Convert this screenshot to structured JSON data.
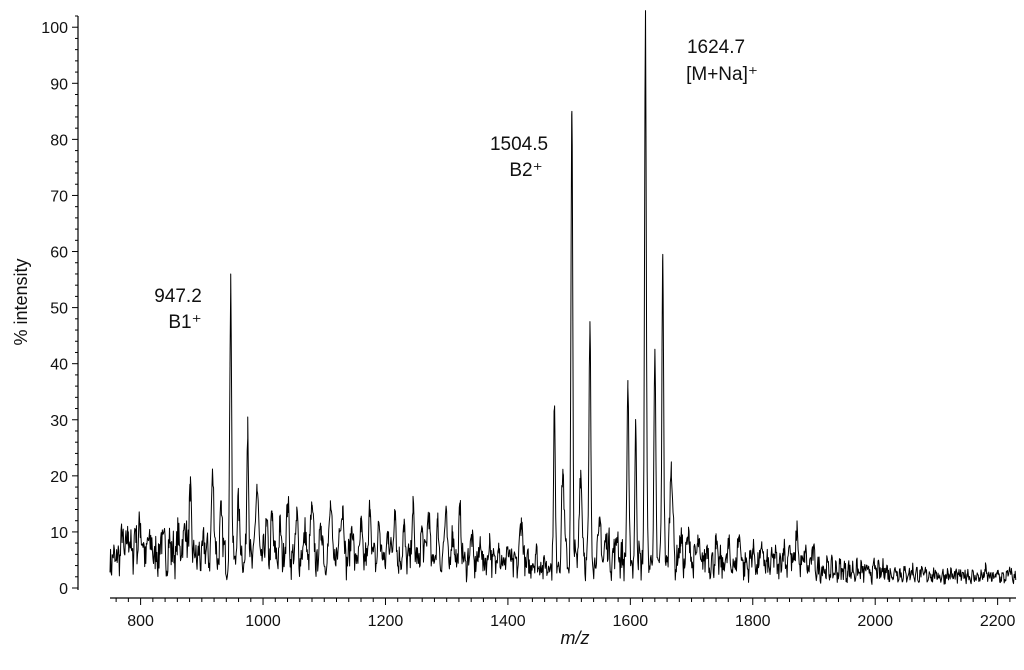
{
  "chart_data": {
    "type": "line",
    "title": "",
    "xlabel": "m/z",
    "ylabel": "% intensity",
    "xlim": [
      750,
      2230
    ],
    "ylim": [
      0,
      102
    ],
    "xticks": [
      800,
      1000,
      1200,
      1400,
      1600,
      1800,
      2000,
      2200
    ],
    "yticks": [
      0,
      10,
      20,
      30,
      40,
      50,
      60,
      70,
      80,
      90,
      100
    ],
    "grid": false,
    "legend": "none",
    "baseline": [
      [
        750,
        5
      ],
      [
        800,
        6
      ],
      [
        850,
        6
      ],
      [
        900,
        5.5
      ],
      [
        950,
        5
      ],
      [
        1000,
        5
      ],
      [
        1100,
        5
      ],
      [
        1200,
        4.8
      ],
      [
        1300,
        4.5
      ],
      [
        1400,
        4.2
      ],
      [
        1460,
        4
      ],
      [
        1520,
        5
      ],
      [
        1560,
        5.5
      ],
      [
        1600,
        5
      ],
      [
        1700,
        4.5
      ],
      [
        1800,
        4
      ],
      [
        1900,
        3.5
      ],
      [
        2000,
        2.8
      ],
      [
        2100,
        2.2
      ],
      [
        2230,
        1.8
      ]
    ],
    "peaks": [
      {
        "x": 770,
        "y": 9
      },
      {
        "x": 780,
        "y": 10
      },
      {
        "x": 792,
        "y": 10
      },
      {
        "x": 800,
        "y": 11.5
      },
      {
        "x": 815,
        "y": 9
      },
      {
        "x": 835,
        "y": 9
      },
      {
        "x": 848,
        "y": 8
      },
      {
        "x": 862,
        "y": 9
      },
      {
        "x": 872,
        "y": 11.5
      },
      {
        "x": 881,
        "y": 15.5
      },
      {
        "x": 905,
        "y": 8
      },
      {
        "x": 918,
        "y": 19.5
      },
      {
        "x": 932,
        "y": 13
      },
      {
        "x": 947.2,
        "y": 56
      },
      {
        "x": 960,
        "y": 15
      },
      {
        "x": 975,
        "y": 30.5
      },
      {
        "x": 990,
        "y": 18.5
      },
      {
        "x": 1005,
        "y": 11
      },
      {
        "x": 1015,
        "y": 12
      },
      {
        "x": 1028,
        "y": 10
      },
      {
        "x": 1040,
        "y": 15
      },
      {
        "x": 1055,
        "y": 12
      },
      {
        "x": 1068,
        "y": 10
      },
      {
        "x": 1080,
        "y": 14.5
      },
      {
        "x": 1095,
        "y": 11
      },
      {
        "x": 1110,
        "y": 14.5
      },
      {
        "x": 1125,
        "y": 10
      },
      {
        "x": 1130,
        "y": 14.5
      },
      {
        "x": 1145,
        "y": 11
      },
      {
        "x": 1160,
        "y": 10
      },
      {
        "x": 1175,
        "y": 14
      },
      {
        "x": 1190,
        "y": 11
      },
      {
        "x": 1205,
        "y": 10
      },
      {
        "x": 1215,
        "y": 14
      },
      {
        "x": 1230,
        "y": 10
      },
      {
        "x": 1245,
        "y": 13.5
      },
      {
        "x": 1260,
        "y": 10
      },
      {
        "x": 1270,
        "y": 13.5
      },
      {
        "x": 1285,
        "y": 11
      },
      {
        "x": 1298,
        "y": 13
      },
      {
        "x": 1310,
        "y": 10
      },
      {
        "x": 1322,
        "y": 13
      },
      {
        "x": 1340,
        "y": 9
      },
      {
        "x": 1355,
        "y": 8
      },
      {
        "x": 1370,
        "y": 8
      },
      {
        "x": 1385,
        "y": 8
      },
      {
        "x": 1400,
        "y": 7
      },
      {
        "x": 1422,
        "y": 12.5
      },
      {
        "x": 1445,
        "y": 6
      },
      {
        "x": 1476,
        "y": 32
      },
      {
        "x": 1490,
        "y": 20.5
      },
      {
        "x": 1504.5,
        "y": 85
      },
      {
        "x": 1519,
        "y": 21
      },
      {
        "x": 1534,
        "y": 47.5
      },
      {
        "x": 1550,
        "y": 11
      },
      {
        "x": 1562,
        "y": 9
      },
      {
        "x": 1578,
        "y": 9
      },
      {
        "x": 1596,
        "y": 37
      },
      {
        "x": 1609,
        "y": 28.5
      },
      {
        "x": 1624.7,
        "y": 102
      },
      {
        "x": 1640,
        "y": 41.5
      },
      {
        "x": 1653,
        "y": 59.5
      },
      {
        "x": 1667,
        "y": 22.5
      },
      {
        "x": 1682,
        "y": 9
      },
      {
        "x": 1695,
        "y": 10
      },
      {
        "x": 1710,
        "y": 8
      },
      {
        "x": 1725,
        "y": 7
      },
      {
        "x": 1740,
        "y": 7
      },
      {
        "x": 1760,
        "y": 7
      },
      {
        "x": 1778,
        "y": 9.5
      },
      {
        "x": 1800,
        "y": 7
      },
      {
        "x": 1815,
        "y": 7
      },
      {
        "x": 1835,
        "y": 6
      },
      {
        "x": 1850,
        "y": 7
      },
      {
        "x": 1860,
        "y": 7.5
      },
      {
        "x": 1872,
        "y": 10
      },
      {
        "x": 1885,
        "y": 6
      },
      {
        "x": 1898,
        "y": 6.5
      },
      {
        "x": 1915,
        "y": 3.5
      },
      {
        "x": 1935,
        "y": 3
      },
      {
        "x": 1955,
        "y": 3
      },
      {
        "x": 1980,
        "y": 3
      },
      {
        "x": 2000,
        "y": 3.5
      },
      {
        "x": 2015,
        "y": 3.5
      },
      {
        "x": 2035,
        "y": 3
      },
      {
        "x": 2060,
        "y": 3
      },
      {
        "x": 2090,
        "y": 2.5
      },
      {
        "x": 2120,
        "y": 2.5
      },
      {
        "x": 2150,
        "y": 2.5
      },
      {
        "x": 2180,
        "y": 3
      },
      {
        "x": 2200,
        "y": 2.5
      },
      {
        "x": 2220,
        "y": 3
      }
    ],
    "annotations": [
      {
        "id": "b1",
        "x": 947.2,
        "value_label": "947.2",
        "ion_label": "B1⁺"
      },
      {
        "id": "b2",
        "x": 1504.5,
        "value_label": "1504.5",
        "ion_label": "B2⁺"
      },
      {
        "id": "mna",
        "x": 1624.7,
        "value_label": "1624.7",
        "ion_label": "[M+Na]⁺"
      }
    ]
  }
}
